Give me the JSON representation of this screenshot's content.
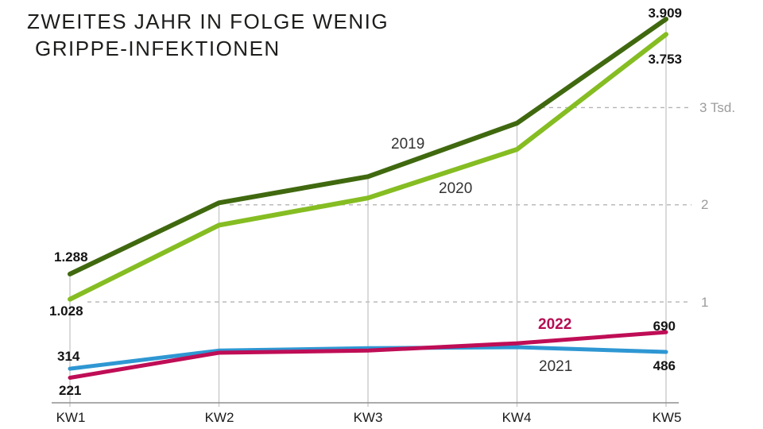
{
  "title": {
    "line1": "ZWEITES JAHR IN FOLGE WENIG",
    "line2": "GRIPPE-INFEKTIONEN"
  },
  "chart_data": {
    "type": "line",
    "title": "Zweites Jahr in Folge wenig Grippe-Infektionen",
    "categories": [
      "KW1",
      "KW2",
      "KW3",
      "KW4",
      "KW5"
    ],
    "xlabel": "",
    "ylabel": "",
    "ylim": [
      0,
      4100
    ],
    "y_ticks": [
      "1",
      "2",
      "3 Tsd."
    ],
    "y_tick_values": [
      1000,
      2000,
      3000
    ],
    "grid": "horizontal dashed gridlines at 1000/2000/3000, vertical solid gridlines at each KW, x-axis baseline",
    "legend_position": "inline year labels beside lines",
    "series": [
      {
        "name": "2019",
        "color": "#40690f",
        "values": [
          1288,
          2020,
          2290,
          2840,
          3909
        ],
        "first_label": "1.288",
        "last_label": "3.909"
      },
      {
        "name": "2020",
        "color": "#85bd22",
        "values": [
          1028,
          1790,
          2070,
          2570,
          3753
        ],
        "first_label": "1.028",
        "last_label": "3.753"
      },
      {
        "name": "2021",
        "color": "#2e97d3",
        "values": [
          314,
          500,
          525,
          535,
          486
        ],
        "first_label": "314",
        "last_label": "486"
      },
      {
        "name": "2022",
        "color": "#bf0d56",
        "values": [
          221,
          478,
          500,
          575,
          690
        ],
        "first_label": "221",
        "last_label": "690"
      }
    ],
    "note": "KW2-KW4 values of all series are estimated from pixel positions; KW1 and KW5 values are labeled in the graphic"
  },
  "labels": {
    "start_2019": "1.288",
    "start_2020": "1.028",
    "start_2021": "314",
    "start_2022": "221",
    "end_2019": "3.909",
    "end_2020": "3.753",
    "end_2021": "486",
    "end_2022": "690"
  },
  "colors": {
    "line_2019": "#40690f",
    "line_2020": "#85bd22",
    "line_2021": "#2e97d3",
    "line_2022": "#bf0d56",
    "label_2022": "#b50d52",
    "grid": "#c6c6c6",
    "grid_dashed": "#b4b4b4",
    "axis": "#8f8f8f",
    "ytick_text": "#9c9c9c",
    "title_text": "#1d1d1b"
  }
}
